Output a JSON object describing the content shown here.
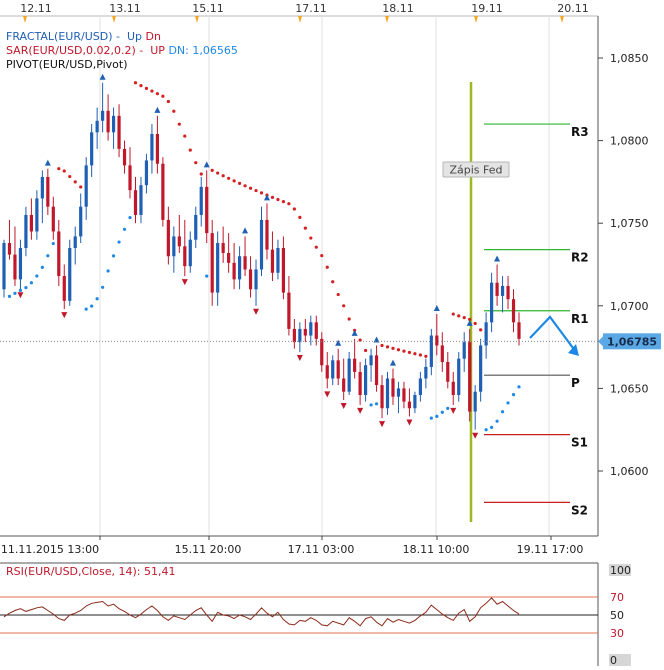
{
  "header": {
    "dates": [
      "12.11",
      "13.11",
      "15.11",
      "17.11",
      "18.11",
      "19.11",
      "20.11"
    ]
  },
  "legend": {
    "fractal_label": "FRACTAL(EUR/USD)",
    "fractal_sep": " -  ",
    "fractal_up": "Up",
    "fractal_dn": "Dn",
    "sar_label": "SAR(EUR/USD,0.02,0.2)",
    "sar_sep": " -  ",
    "sar_up": "UP",
    "sar_dn_label": "DN: 1,06565",
    "pivot_label": "PIVOT(EUR/USD,Pivot)"
  },
  "annotation": {
    "text": "Zápis Fed"
  },
  "colors": {
    "up_candle": "#1f5fb4",
    "down_candle": "#c0172a",
    "sar_up": "#d61f1f",
    "sar_down": "#1e88e5",
    "resistance": "#2fb52f",
    "support": "#c81e1e",
    "pivot": "#555555",
    "fed_line": "#9aba1f",
    "price_badge": "#5aa9e6",
    "rsi_line": "#8b2a1a",
    "rsi_band": "#e07050",
    "date_marker": "#f5a623"
  },
  "chart_data": [
    {
      "type": "candlestick",
      "title": "",
      "symbol": "EUR/USD",
      "ylim": [
        1.0572,
        1.0872
      ],
      "y_ticks": [
        "1,0850",
        "1,0800",
        "1,0750",
        "1,0700",
        "1,0650",
        "1,0600"
      ],
      "y_tick_values": [
        1.085,
        1.08,
        1.075,
        1.07,
        1.065,
        1.06
      ],
      "x_ticks": [
        "11.11.2015 13:00",
        "15.11 20:00",
        "17.11 03:00",
        "18.11 10:00",
        "19.11 17:00"
      ],
      "current_price": 1.06785,
      "current_price_label": "1,06785",
      "pivot_levels": [
        {
          "name": "R3",
          "value": 1.081
        },
        {
          "name": "R2",
          "value": 1.0734
        },
        {
          "name": "R1",
          "value": 1.0697
        },
        {
          "name": "P",
          "value": 1.0658
        },
        {
          "name": "S1",
          "value": 1.0622
        },
        {
          "name": "S2",
          "value": 1.0581
        }
      ],
      "candles": [
        [
          1.071,
          1.074,
          1.0705,
          1.0738
        ],
        [
          1.0738,
          1.0752,
          1.0728,
          1.0731
        ],
        [
          1.0731,
          1.0748,
          1.0712,
          1.0716
        ],
        [
          1.0716,
          1.074,
          1.071,
          1.0735
        ],
        [
          1.0735,
          1.076,
          1.073,
          1.0755
        ],
        [
          1.0755,
          1.0765,
          1.074,
          1.0745
        ],
        [
          1.0745,
          1.077,
          1.074,
          1.0765
        ],
        [
          1.0765,
          1.0782,
          1.075,
          1.0778
        ],
        [
          1.0778,
          1.0783,
          1.0755,
          1.076
        ],
        [
          1.076,
          1.0766,
          1.074,
          1.0745
        ],
        [
          1.0745,
          1.0752,
          1.0712,
          1.0718
        ],
        [
          1.0718,
          1.0725,
          1.0698,
          1.0703
        ],
        [
          1.0703,
          1.074,
          1.07,
          1.0735
        ],
        [
          1.0735,
          1.0748,
          1.0725,
          1.0742
        ],
        [
          1.0742,
          1.0768,
          1.0738,
          1.076
        ],
        [
          1.076,
          1.079,
          1.0752,
          1.0785
        ],
        [
          1.0785,
          1.081,
          1.0778,
          1.0805
        ],
        [
          1.0805,
          1.082,
          1.0795,
          1.0812
        ],
        [
          1.0812,
          1.0835,
          1.0805,
          1.0818
        ],
        [
          1.0818,
          1.0828,
          1.08,
          1.0805
        ],
        [
          1.0805,
          1.082,
          1.0795,
          1.0815
        ],
        [
          1.0815,
          1.0822,
          1.079,
          1.0795
        ],
        [
          1.0795,
          1.08,
          1.078,
          1.0785
        ],
        [
          1.0785,
          1.0796,
          1.0765,
          1.077
        ],
        [
          1.077,
          1.0778,
          1.075,
          1.0755
        ],
        [
          1.0755,
          1.0778,
          1.075,
          1.0773
        ],
        [
          1.0773,
          1.0792,
          1.0768,
          1.0788
        ],
        [
          1.0788,
          1.081,
          1.078,
          1.0804
        ],
        [
          1.0804,
          1.0815,
          1.078,
          1.0786
        ],
        [
          1.0786,
          1.079,
          1.0748,
          1.0752
        ],
        [
          1.0752,
          1.076,
          1.0725,
          1.073
        ],
        [
          1.073,
          1.0748,
          1.072,
          1.0742
        ],
        [
          1.0742,
          1.0755,
          1.0732,
          1.0736
        ],
        [
          1.0736,
          1.0752,
          1.0718,
          1.0724
        ],
        [
          1.0724,
          1.0745,
          1.072,
          1.074
        ],
        [
          1.074,
          1.076,
          1.0735,
          1.0755
        ],
        [
          1.0755,
          1.0778,
          1.0748,
          1.0772
        ],
        [
          1.0772,
          1.0782,
          1.0738,
          1.0744
        ],
        [
          1.0744,
          1.0752,
          1.07,
          1.0708
        ],
        [
          1.0708,
          1.0745,
          1.07,
          1.0738
        ],
        [
          1.0738,
          1.0748,
          1.0726,
          1.0732
        ],
        [
          1.0732,
          1.0744,
          1.072,
          1.0726
        ],
        [
          1.0726,
          1.0738,
          1.071,
          1.0716
        ],
        [
          1.0716,
          1.0736,
          1.071,
          1.073
        ],
        [
          1.073,
          1.0742,
          1.0718,
          1.0722
        ],
        [
          1.0722,
          1.073,
          1.0705,
          1.071
        ],
        [
          1.071,
          1.0728,
          1.07,
          1.0722
        ],
        [
          1.0722,
          1.076,
          1.0718,
          1.0752
        ],
        [
          1.0752,
          1.0762,
          1.0728,
          1.0734
        ],
        [
          1.0734,
          1.0745,
          1.0715,
          1.072
        ],
        [
          1.072,
          1.074,
          1.0716,
          1.0735
        ],
        [
          1.0735,
          1.0742,
          1.0704,
          1.0708
        ],
        [
          1.0708,
          1.0718,
          1.0682,
          1.0686
        ],
        [
          1.0686,
          1.0692,
          1.0674,
          1.0678
        ],
        [
          1.0678,
          1.069,
          1.0672,
          1.0686
        ],
        [
          1.0686,
          1.0692,
          1.0678,
          1.0682
        ],
        [
          1.0682,
          1.0694,
          1.0676,
          1.069
        ],
        [
          1.069,
          1.0694,
          1.0676,
          1.068
        ],
        [
          1.068,
          1.0684,
          1.066,
          1.0664
        ],
        [
          1.0664,
          1.0672,
          1.065,
          1.0656
        ],
        [
          1.0656,
          1.067,
          1.0652,
          1.0667
        ],
        [
          1.0667,
          1.0674,
          1.0652,
          1.0656
        ],
        [
          1.0656,
          1.0668,
          1.0643,
          1.0648
        ],
        [
          1.0648,
          1.0672,
          1.0646,
          1.0668
        ],
        [
          1.0668,
          1.068,
          1.0656,
          1.066
        ],
        [
          1.066,
          1.0666,
          1.064,
          1.0646
        ],
        [
          1.0646,
          1.0668,
          1.0642,
          1.0664
        ],
        [
          1.0664,
          1.0674,
          1.0654,
          1.067
        ],
        [
          1.067,
          1.0676,
          1.0648,
          1.0652
        ],
        [
          1.0652,
          1.0658,
          1.0632,
          1.0638
        ],
        [
          1.0638,
          1.066,
          1.0634,
          1.0656
        ],
        [
          1.0656,
          1.0662,
          1.064,
          1.0645
        ],
        [
          1.0645,
          1.0654,
          1.0635,
          1.065
        ],
        [
          1.065,
          1.0654,
          1.0638,
          1.0642
        ],
        [
          1.0642,
          1.065,
          1.0633,
          1.0638
        ],
        [
          1.0638,
          1.0648,
          1.0635,
          1.0646
        ],
        [
          1.0646,
          1.066,
          1.0642,
          1.0656
        ],
        [
          1.0656,
          1.0668,
          1.065,
          1.0663
        ],
        [
          1.0663,
          1.0686,
          1.0658,
          1.0682
        ],
        [
          1.0682,
          1.0695,
          1.067,
          1.0676
        ],
        [
          1.0676,
          1.0684,
          1.066,
          1.0666
        ],
        [
          1.0666,
          1.0672,
          1.065,
          1.0654
        ],
        [
          1.0654,
          1.066,
          1.064,
          1.0646
        ],
        [
          1.0646,
          1.0672,
          1.0642,
          1.0668
        ],
        [
          1.0668,
          1.0684,
          1.066,
          1.0678
        ],
        [
          1.0678,
          1.0686,
          1.063,
          1.0636
        ],
        [
          1.0636,
          1.0652,
          1.0625,
          1.0648
        ],
        [
          1.0648,
          1.068,
          1.0642,
          1.0676
        ],
        [
          1.0676,
          1.0696,
          1.0668,
          1.069
        ],
        [
          1.069,
          1.072,
          1.0684,
          1.0714
        ],
        [
          1.0714,
          1.0725,
          1.07,
          1.0706
        ],
        [
          1.0706,
          1.0718,
          1.0696,
          1.0712
        ],
        [
          1.0712,
          1.0718,
          1.0698,
          1.0704
        ],
        [
          1.0704,
          1.071,
          1.0684,
          1.069
        ],
        [
          1.069,
          1.0696,
          1.0676,
          1.068
        ]
      ]
    },
    {
      "type": "line",
      "title": "RSI(EUR/USD,Close, 14): 51,41",
      "ylim": [
        0,
        100
      ],
      "levels": [
        70,
        30
      ],
      "midline": 50,
      "y_ticks": [
        "100",
        "70",
        "50",
        "30",
        "0"
      ],
      "y_tick_values": [
        100,
        70,
        50,
        30,
        0
      ],
      "values": [
        48,
        52,
        55,
        57,
        54,
        56,
        58,
        59,
        55,
        51,
        46,
        44,
        50,
        52,
        55,
        60,
        63,
        64,
        65,
        60,
        62,
        57,
        54,
        50,
        47,
        51,
        56,
        60,
        55,
        48,
        44,
        49,
        47,
        45,
        50,
        55,
        58,
        50,
        43,
        53,
        50,
        49,
        46,
        50,
        48,
        45,
        51,
        58,
        52,
        48,
        53,
        45,
        40,
        39,
        44,
        43,
        47,
        44,
        39,
        38,
        43,
        41,
        39,
        47,
        43,
        38,
        46,
        48,
        42,
        38,
        46,
        42,
        45,
        43,
        41,
        44,
        49,
        53,
        61,
        56,
        51,
        47,
        44,
        52,
        56,
        43,
        48,
        58,
        63,
        69,
        62,
        65,
        60,
        55,
        51
      ]
    }
  ]
}
